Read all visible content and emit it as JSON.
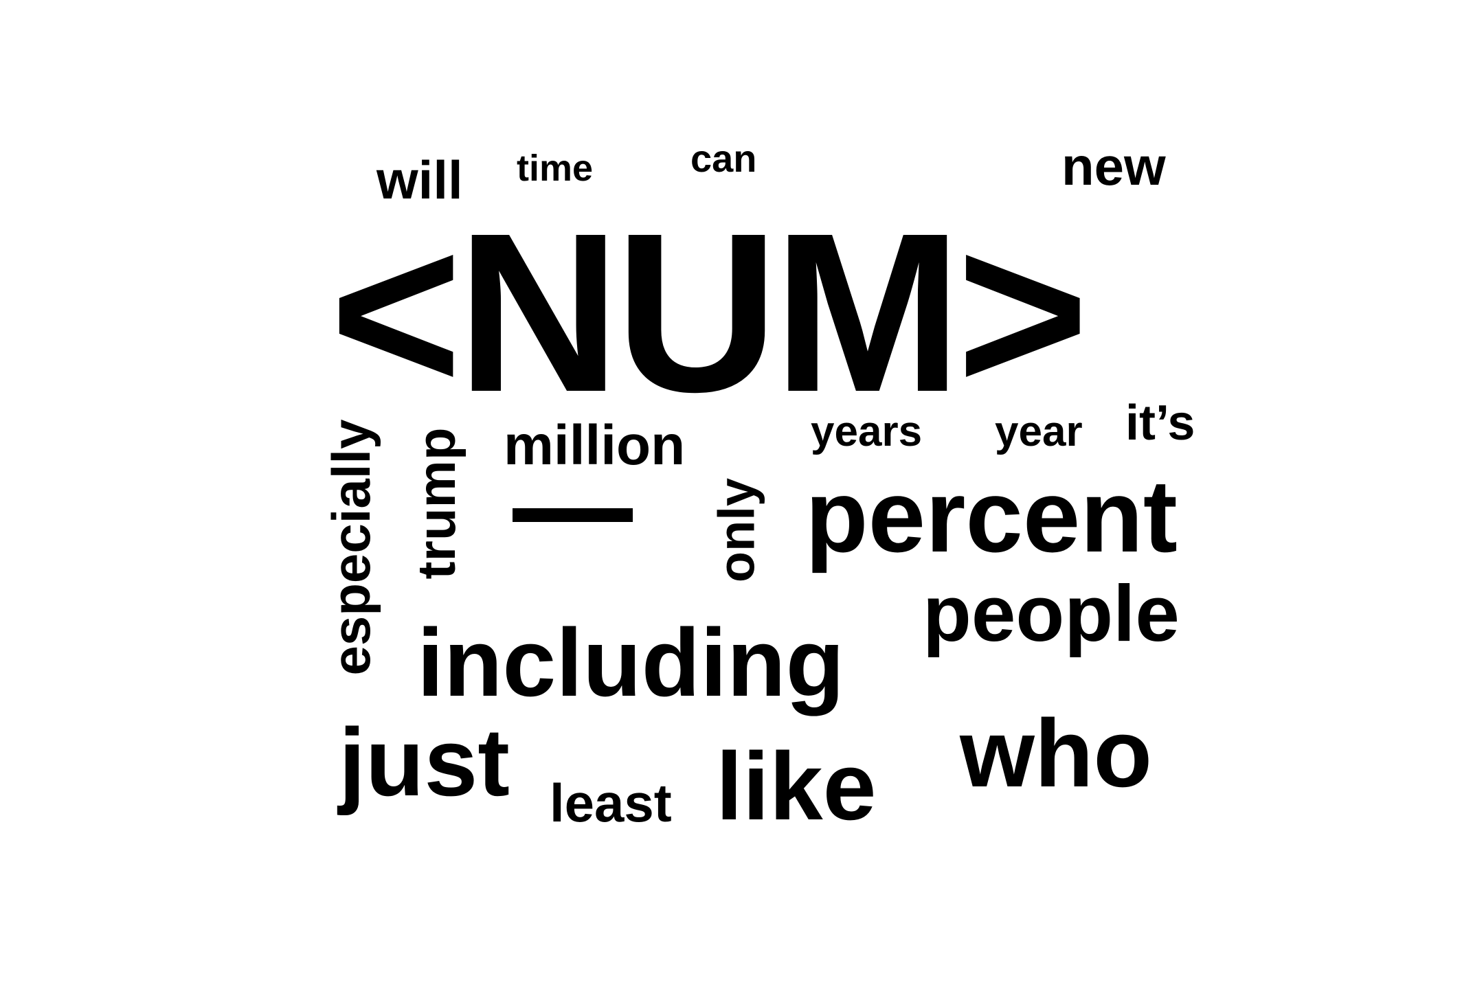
{
  "wordcloud": {
    "words": {
      "num": "<NUM>",
      "percent": "percent",
      "including": "including",
      "people": "people",
      "who": "who",
      "just": "just",
      "like": "like",
      "million": "million",
      "especially": "especially",
      "trump": "trump",
      "only": "only",
      "dash": "—",
      "least": "least",
      "years": "years",
      "year": "year",
      "its": "it’s",
      "will": "will",
      "time": "time",
      "can": "can",
      "new": "new"
    },
    "text_color": "#000000",
    "background_color": "#ffffff"
  }
}
